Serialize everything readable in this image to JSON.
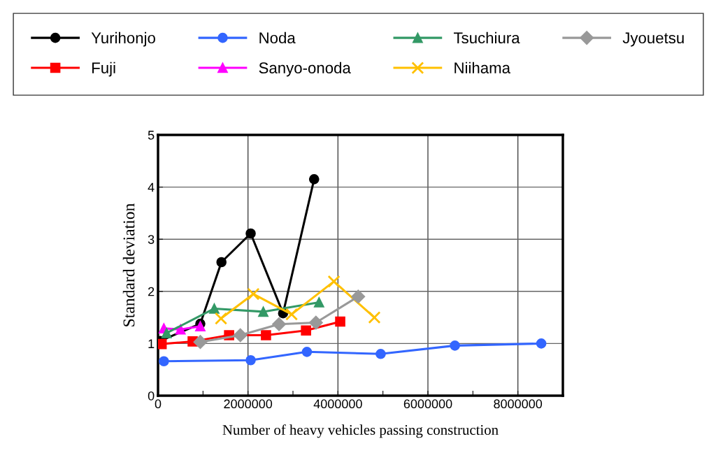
{
  "chart_data": {
    "type": "line",
    "xlabel": "Number of heavy vehicles passing construction",
    "ylabel": "Standard deviation",
    "xlim": [
      0,
      9000000
    ],
    "ylim": [
      0,
      5
    ],
    "xticks": [
      0,
      {
        "value": 1000000,
        "label": null
      },
      2000000,
      {
        "value": 3000000,
        "label": null
      },
      4000000,
      {
        "value": 5000000,
        "label": null
      },
      6000000,
      {
        "value": 7000000,
        "label": null
      },
      8000000
    ],
    "yticks": [
      0,
      1,
      2,
      3,
      4,
      5
    ],
    "grid": true,
    "legend": "top",
    "line_style": "solid",
    "series": [
      {
        "name": "Yurihonjo",
        "color": "#000000",
        "marker": "circle",
        "x": [
          50000,
          940000,
          1410000,
          2060000,
          2780000,
          3470000
        ],
        "values": [
          1.05,
          1.38,
          2.56,
          3.11,
          1.58,
          4.15
        ]
      },
      {
        "name": "Fuji",
        "color": "#ff0000",
        "marker": "square",
        "x": [
          80000,
          770000,
          1580000,
          2400000,
          3290000,
          4050000
        ],
        "values": [
          0.99,
          1.04,
          1.16,
          1.16,
          1.25,
          1.42
        ]
      },
      {
        "name": "Noda",
        "color": "#3366ff",
        "marker": "circle",
        "x": [
          130000,
          2060000,
          3310000,
          4950000,
          6600000,
          8520000
        ],
        "values": [
          0.66,
          0.68,
          0.84,
          0.8,
          0.96,
          1.0
        ]
      },
      {
        "name": "Sanyo-onoda",
        "color": "#ff00ff",
        "marker": "triangle",
        "x": [
          130000,
          500000,
          940000
        ],
        "values": [
          1.29,
          1.27,
          1.33
        ]
      },
      {
        "name": "Tsuchiura",
        "color": "#339966",
        "marker": "triangle",
        "x": [
          190000,
          1250000,
          2340000,
          3580000
        ],
        "values": [
          1.2,
          1.67,
          1.61,
          1.79
        ]
      },
      {
        "name": "Niihama",
        "color": "#ffc000",
        "marker": "cross",
        "x": [
          1400000,
          2120000,
          2970000,
          3910000,
          4810000
        ],
        "values": [
          1.48,
          1.95,
          1.56,
          2.19,
          1.5
        ]
      },
      {
        "name": "Jyouetsu",
        "color": "#999999",
        "marker": "diamond",
        "x": [
          940000,
          1830000,
          2690000,
          3510000,
          4450000
        ],
        "values": [
          1.03,
          1.16,
          1.37,
          1.4,
          1.9
        ]
      }
    ]
  }
}
